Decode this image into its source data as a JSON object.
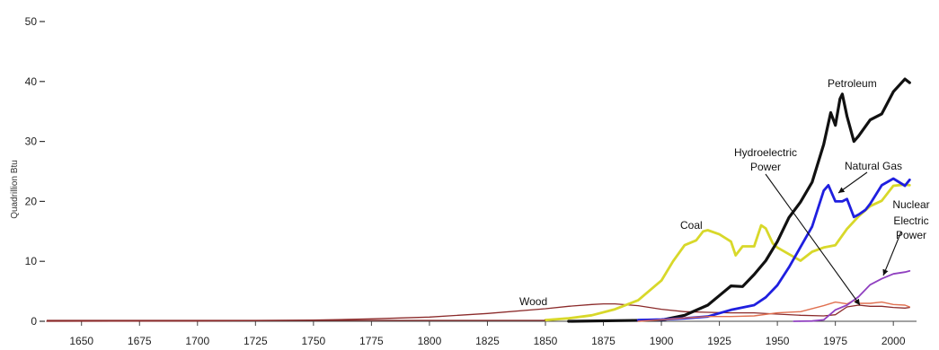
{
  "chart_data": {
    "type": "line",
    "title": "",
    "xlabel": "",
    "ylabel": "Quadrillion Btu",
    "xlim": [
      1635,
      2010
    ],
    "ylim": [
      0,
      50
    ],
    "x_ticks": [
      1650,
      1675,
      1700,
      1725,
      1750,
      1775,
      1800,
      1825,
      1850,
      1875,
      1900,
      1925,
      1950,
      1975,
      2000
    ],
    "x_tick_labels": [
      "1650",
      "1675",
      "1700",
      "1725",
      "1750",
      "1775",
      "1800",
      "1825",
      "1850",
      "1875",
      "1900",
      "1925",
      "1950",
      "1975",
      "2000"
    ],
    "y_ticks": [
      0,
      10,
      20,
      30,
      40,
      50
    ],
    "y_tick_labels": [
      "0",
      "10",
      "20",
      "30",
      "40",
      "50"
    ],
    "grid": false,
    "legend": "none",
    "series": [
      {
        "name": "Wood",
        "color": "#8b2a2a",
        "x": [
          1635,
          1700,
          1750,
          1775,
          1800,
          1825,
          1850,
          1860,
          1870,
          1875,
          1880,
          1890,
          1900,
          1910,
          1920,
          1930,
          1940,
          1950,
          1960,
          1970,
          1975,
          1980,
          1985,
          1990,
          1995,
          2000,
          2005,
          2007
        ],
        "y": [
          0,
          0.05,
          0.2,
          0.4,
          0.7,
          1.3,
          2.1,
          2.5,
          2.8,
          2.9,
          2.9,
          2.6,
          2.0,
          1.6,
          1.5,
          1.4,
          1.4,
          1.2,
          1.0,
          0.9,
          1.1,
          2.4,
          2.7,
          2.5,
          2.5,
          2.3,
          2.2,
          2.3
        ]
      },
      {
        "name": "Coal",
        "color": "#d8d82a",
        "x": [
          1850,
          1860,
          1870,
          1880,
          1890,
          1900,
          1905,
          1910,
          1915,
          1918,
          1920,
          1925,
          1930,
          1932,
          1935,
          1940,
          1943,
          1945,
          1948,
          1950,
          1955,
          1960,
          1965,
          1970,
          1975,
          1980,
          1985,
          1990,
          1995,
          2000,
          2005,
          2007
        ],
        "y": [
          0.2,
          0.5,
          1.0,
          2.0,
          3.5,
          6.8,
          10.0,
          12.7,
          13.5,
          15.0,
          15.2,
          14.5,
          13.3,
          11.0,
          12.5,
          12.5,
          16.0,
          15.5,
          13.0,
          12.3,
          11.2,
          10.1,
          11.6,
          12.3,
          12.7,
          15.4,
          17.5,
          19.2,
          20.1,
          22.6,
          22.8,
          22.7
        ]
      },
      {
        "name": "Petroleum",
        "color": "#111111",
        "x": [
          1860,
          1880,
          1900,
          1910,
          1920,
          1925,
          1930,
          1935,
          1940,
          1945,
          1950,
          1955,
          1960,
          1965,
          1970,
          1973,
          1975,
          1977,
          1978,
          1980,
          1983,
          1985,
          1990,
          1995,
          2000,
          2005,
          2007
        ],
        "y": [
          0,
          0.1,
          0.2,
          1.0,
          2.7,
          4.3,
          5.9,
          5.8,
          7.8,
          10.1,
          13.3,
          17.3,
          19.9,
          23.2,
          29.5,
          34.8,
          32.7,
          37.1,
          37.9,
          34.2,
          30.0,
          30.9,
          33.6,
          34.6,
          38.3,
          40.4,
          39.8
        ]
      },
      {
        "name": "Natural Gas",
        "color": "#1f1fdf",
        "x": [
          1890,
          1900,
          1910,
          1920,
          1930,
          1940,
          1945,
          1950,
          1955,
          1960,
          1965,
          1970,
          1972,
          1975,
          1978,
          1980,
          1983,
          1985,
          1988,
          1990,
          1995,
          2000,
          2005,
          2007
        ],
        "y": [
          0.2,
          0.3,
          0.5,
          0.8,
          1.9,
          2.7,
          4.0,
          6.0,
          9.0,
          12.4,
          15.8,
          21.8,
          22.7,
          20.0,
          20.0,
          20.4,
          17.4,
          17.8,
          18.6,
          19.6,
          22.7,
          23.8,
          22.6,
          23.6
        ]
      },
      {
        "name": "Hydroelectric Power",
        "color": "#e07050",
        "x": [
          1890,
          1900,
          1910,
          1920,
          1930,
          1940,
          1950,
          1960,
          1970,
          1975,
          1980,
          1983,
          1985,
          1990,
          1995,
          2000,
          2005,
          2007
        ],
        "y": [
          0,
          0.25,
          0.55,
          0.8,
          0.8,
          0.9,
          1.4,
          1.6,
          2.6,
          3.2,
          2.9,
          3.5,
          3.0,
          3.0,
          3.2,
          2.8,
          2.7,
          2.4
        ]
      },
      {
        "name": "Nuclear Electric Power",
        "color": "#9040c0",
        "x": [
          1957,
          1960,
          1965,
          1970,
          1975,
          1980,
          1985,
          1990,
          1995,
          2000,
          2005,
          2007
        ],
        "y": [
          0,
          0.01,
          0.04,
          0.24,
          1.9,
          2.7,
          4.1,
          6.1,
          7.1,
          7.9,
          8.2,
          8.4
        ]
      }
    ],
    "annotations": [
      {
        "text": "Wood",
        "series": "Wood"
      },
      {
        "text": "Coal",
        "series": "Coal"
      },
      {
        "text": "Petroleum",
        "series": "Petroleum"
      },
      {
        "text": "Natural Gas",
        "series": "Natural Gas"
      },
      {
        "lines": [
          "Hydroelectric",
          "Power"
        ],
        "series": "Hydroelectric Power"
      },
      {
        "lines": [
          "Nuclear",
          "Electric",
          "Power"
        ],
        "series": "Nuclear Electric Power"
      }
    ]
  }
}
